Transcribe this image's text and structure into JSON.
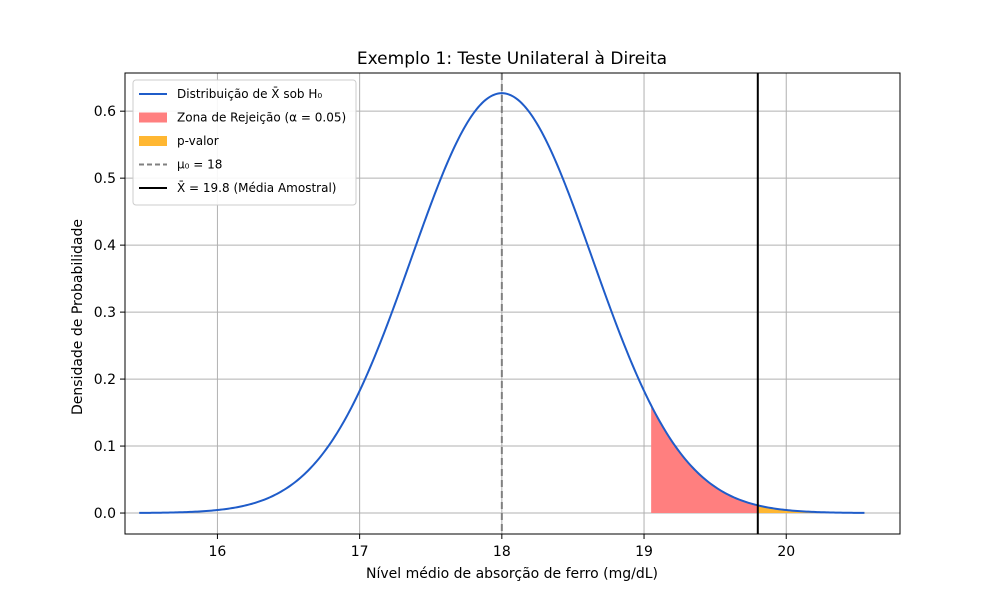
{
  "chart_data": {
    "type": "line",
    "title": "Exemplo 1: Teste Unilateral à Direita",
    "xlabel": "Nível médio de absorção de ferro (mg/dL)",
    "ylabel": "Densidade de Probabilidade",
    "xlim": [
      15.35,
      20.8
    ],
    "ylim": [
      -0.0313,
      0.657
    ],
    "xticks": [
      16,
      17,
      18,
      19,
      20
    ],
    "yticks": [
      0.0,
      0.1,
      0.2,
      0.3,
      0.4,
      0.5,
      0.6
    ],
    "ytick_labels": [
      "0.0",
      "0.1",
      "0.2",
      "0.3",
      "0.4",
      "0.5",
      "0.6"
    ],
    "grid": true,
    "legend_position": "upper-left",
    "distribution": {
      "mean": 18,
      "std": 0.6364,
      "x_range": [
        15.45,
        20.55
      ],
      "color": "#1f5cc9"
    },
    "rejection_zone": {
      "from": 19.05,
      "to": 19.8,
      "color": "#ff7f7f"
    },
    "p_value_area": {
      "from": 19.8,
      "to": 20.55,
      "color": "#ffb732"
    },
    "mu0_line": {
      "x": 18,
      "color": "#808080"
    },
    "sample_mean_line": {
      "x": 19.8,
      "color": "#000000"
    },
    "legend": [
      {
        "label": "Distribuição de X̄ sob H₀",
        "kind": "line",
        "color": "#1f5cc9"
      },
      {
        "label": "Zona de Rejeição (α = 0.05)",
        "kind": "patch",
        "color": "#ff7f7f"
      },
      {
        "label": "p-valor",
        "kind": "patch",
        "color": "#ffb732"
      },
      {
        "label": "μ₀ = 18",
        "kind": "dashed",
        "color": "#808080"
      },
      {
        "label": "X̄ = 19.8 (Média Amostral)",
        "kind": "line",
        "color": "#000000"
      }
    ]
  }
}
